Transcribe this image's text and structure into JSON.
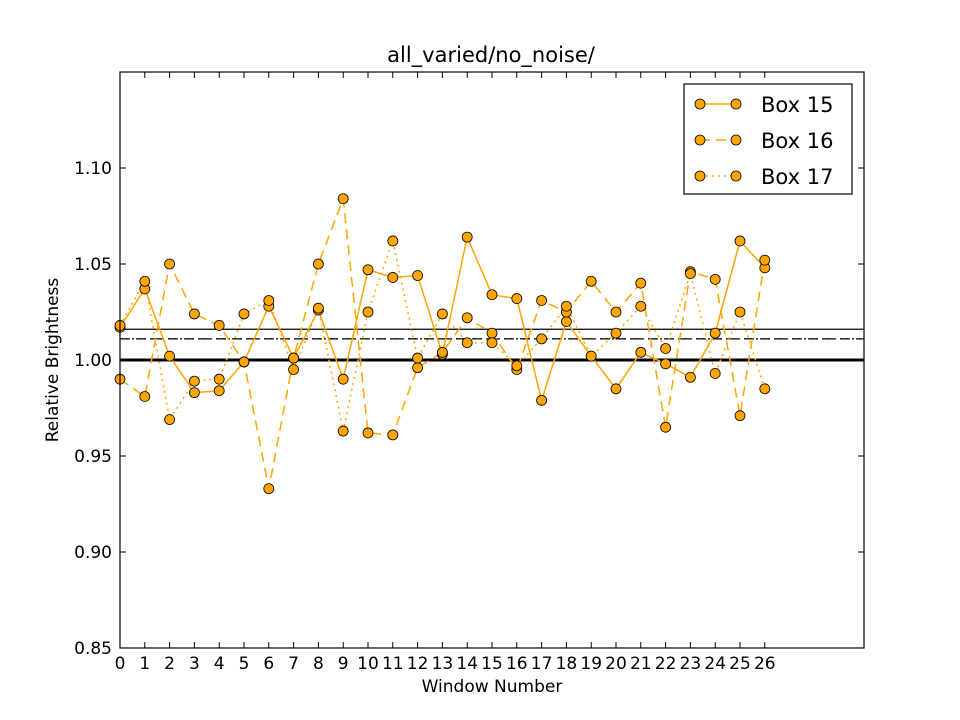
{
  "chart_data": {
    "type": "line",
    "title": "all_varied/no_noise/",
    "xlabel": "Window Number",
    "ylabel": "Relative Brightness",
    "xlim": [
      0,
      30
    ],
    "ylim": [
      0.85,
      1.15
    ],
    "xticks": [
      "0",
      "1",
      "2",
      "3",
      "4",
      "5",
      "6",
      "7",
      "8",
      "9",
      "10",
      "11",
      "12",
      "13",
      "14",
      "15",
      "16",
      "17",
      "18",
      "19",
      "20",
      "21",
      "22",
      "23",
      "24",
      "25",
      "26"
    ],
    "yticks": [
      "0.85",
      "0.90",
      "0.95",
      "1.00",
      "1.05",
      "1.10"
    ],
    "ytick_values": [
      0.85,
      0.9,
      0.95,
      1.0,
      1.05,
      1.1
    ],
    "legend_position": "top-right",
    "marker_color": "#FFA500",
    "series": [
      {
        "name": "Box 15",
        "linestyle": "solid",
        "x": [
          0,
          1,
          2,
          3,
          4,
          5,
          6,
          7,
          8,
          9,
          10,
          11,
          12,
          13,
          14,
          15,
          16,
          17,
          18,
          19,
          20,
          21,
          22,
          23,
          24,
          25,
          26
        ],
        "values": [
          1.017,
          1.037,
          1.002,
          0.983,
          0.984,
          0.999,
          1.028,
          1.001,
          1.026,
          0.99,
          1.047,
          1.043,
          1.044,
          1.003,
          1.064,
          1.034,
          1.032,
          0.979,
          1.02,
          1.002,
          0.985,
          1.004,
          0.998,
          0.991,
          1.014,
          1.062,
          1.048
        ]
      },
      {
        "name": "Box 16",
        "linestyle": "dashed",
        "x": [
          0,
          1,
          2,
          3,
          4,
          5,
          6,
          7,
          8,
          9,
          10,
          11,
          12,
          13,
          14,
          15,
          16,
          17,
          18,
          19,
          20,
          21,
          22,
          23,
          24,
          25,
          26
        ],
        "values": [
          0.99,
          0.981,
          1.05,
          1.024,
          1.018,
          0.999,
          0.933,
          1.001,
          1.05,
          1.084,
          0.962,
          0.961,
          0.996,
          1.004,
          1.022,
          1.014,
          0.995,
          1.031,
          1.025,
          1.041,
          1.025,
          1.04,
          0.965,
          1.046,
          1.042,
          0.971,
          1.052
        ]
      },
      {
        "name": "Box 17",
        "linestyle": "dotted",
        "x": [
          0,
          1,
          2,
          3,
          4,
          5,
          6,
          7,
          8,
          9,
          10,
          11,
          12,
          13,
          14,
          15,
          16,
          17,
          18,
          19,
          20,
          21,
          22,
          23,
          24,
          25,
          26
        ],
        "values": [
          1.018,
          1.041,
          0.969,
          0.989,
          0.99,
          1.024,
          1.031,
          0.995,
          1.027,
          0.963,
          1.025,
          1.062,
          1.001,
          1.024,
          1.009,
          1.009,
          0.997,
          1.011,
          1.028,
          1.002,
          1.014,
          1.028,
          1.006,
          1.045,
          0.993,
          1.025,
          0.985
        ]
      }
    ],
    "reference_lines": [
      {
        "y": 1.0,
        "style": "solid",
        "weight": "thick",
        "color": "#000000"
      },
      {
        "y": 1.016,
        "style": "solid",
        "weight": "thin",
        "color": "#000000"
      },
      {
        "y": 1.011,
        "style": "dashed",
        "weight": "thin",
        "color": "#000000"
      },
      {
        "y": 1.011,
        "style": "dotted",
        "weight": "thin",
        "color": "#000000"
      }
    ]
  }
}
